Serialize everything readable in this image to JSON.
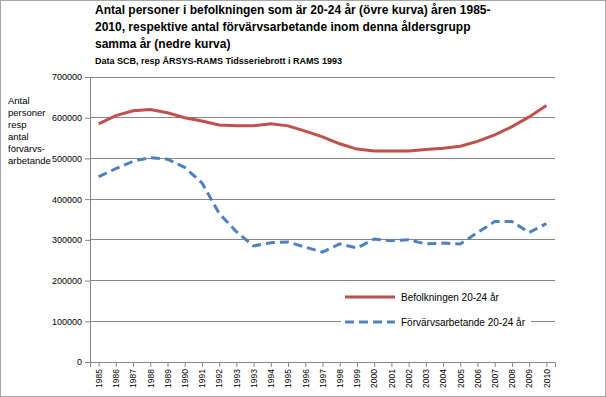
{
  "chart_data": {
    "type": "line",
    "title": [
      "Antal personer i befolkningen som är 20-24 år (övre kurva) åren 1985-",
      "2010, respektive antal förvärvsarbetande inom denna åldersgrupp",
      "samma år (nedre kurva)"
    ],
    "subtitle": "Data SCB, resp ÅRSYS-RAMS Tidsseriebrott i RAMS 1993",
    "y_label": [
      "Antal",
      "personer",
      "resp",
      "antal",
      "förvärvs-",
      "arbetande"
    ],
    "categories": [
      "1985",
      "1986",
      "1987",
      "1988",
      "1989",
      "1990",
      "1991",
      "1992",
      "1993",
      "1993",
      "1994",
      "1995",
      "1996",
      "1997",
      "1998",
      "1999",
      "2000",
      "2001",
      "2002",
      "2003",
      "2004",
      "2005",
      "2006",
      "2007",
      "2008",
      "2009",
      "2010"
    ],
    "series": [
      {
        "name": "Befolkningen 20-24 år",
        "color": "#c0504d",
        "line_style": "solid",
        "values": [
          585000,
          605000,
          617000,
          620000,
          612000,
          600000,
          592000,
          582000,
          580000,
          580000,
          585000,
          580000,
          567000,
          553000,
          536000,
          523000,
          518000,
          518000,
          518000,
          522000,
          525000,
          530000,
          542000,
          558000,
          578000,
          602000,
          630000
        ]
      },
      {
        "name": "Förvärvsarbetande 20-24 år",
        "color": "#4f81bd",
        "line_style": "dashed",
        "values": [
          455000,
          475000,
          493000,
          502000,
          498000,
          478000,
          440000,
          365000,
          320000,
          285000,
          293000,
          295000,
          282000,
          270000,
          290000,
          280000,
          302000,
          298000,
          300000,
          290000,
          292000,
          290000,
          318000,
          345000,
          345000,
          318000,
          340000
        ]
      }
    ],
    "ylim": [
      0,
      700000
    ],
    "yticks": [
      0,
      100000,
      200000,
      300000,
      400000,
      500000,
      600000,
      700000
    ],
    "grid": true,
    "legend": "right"
  }
}
